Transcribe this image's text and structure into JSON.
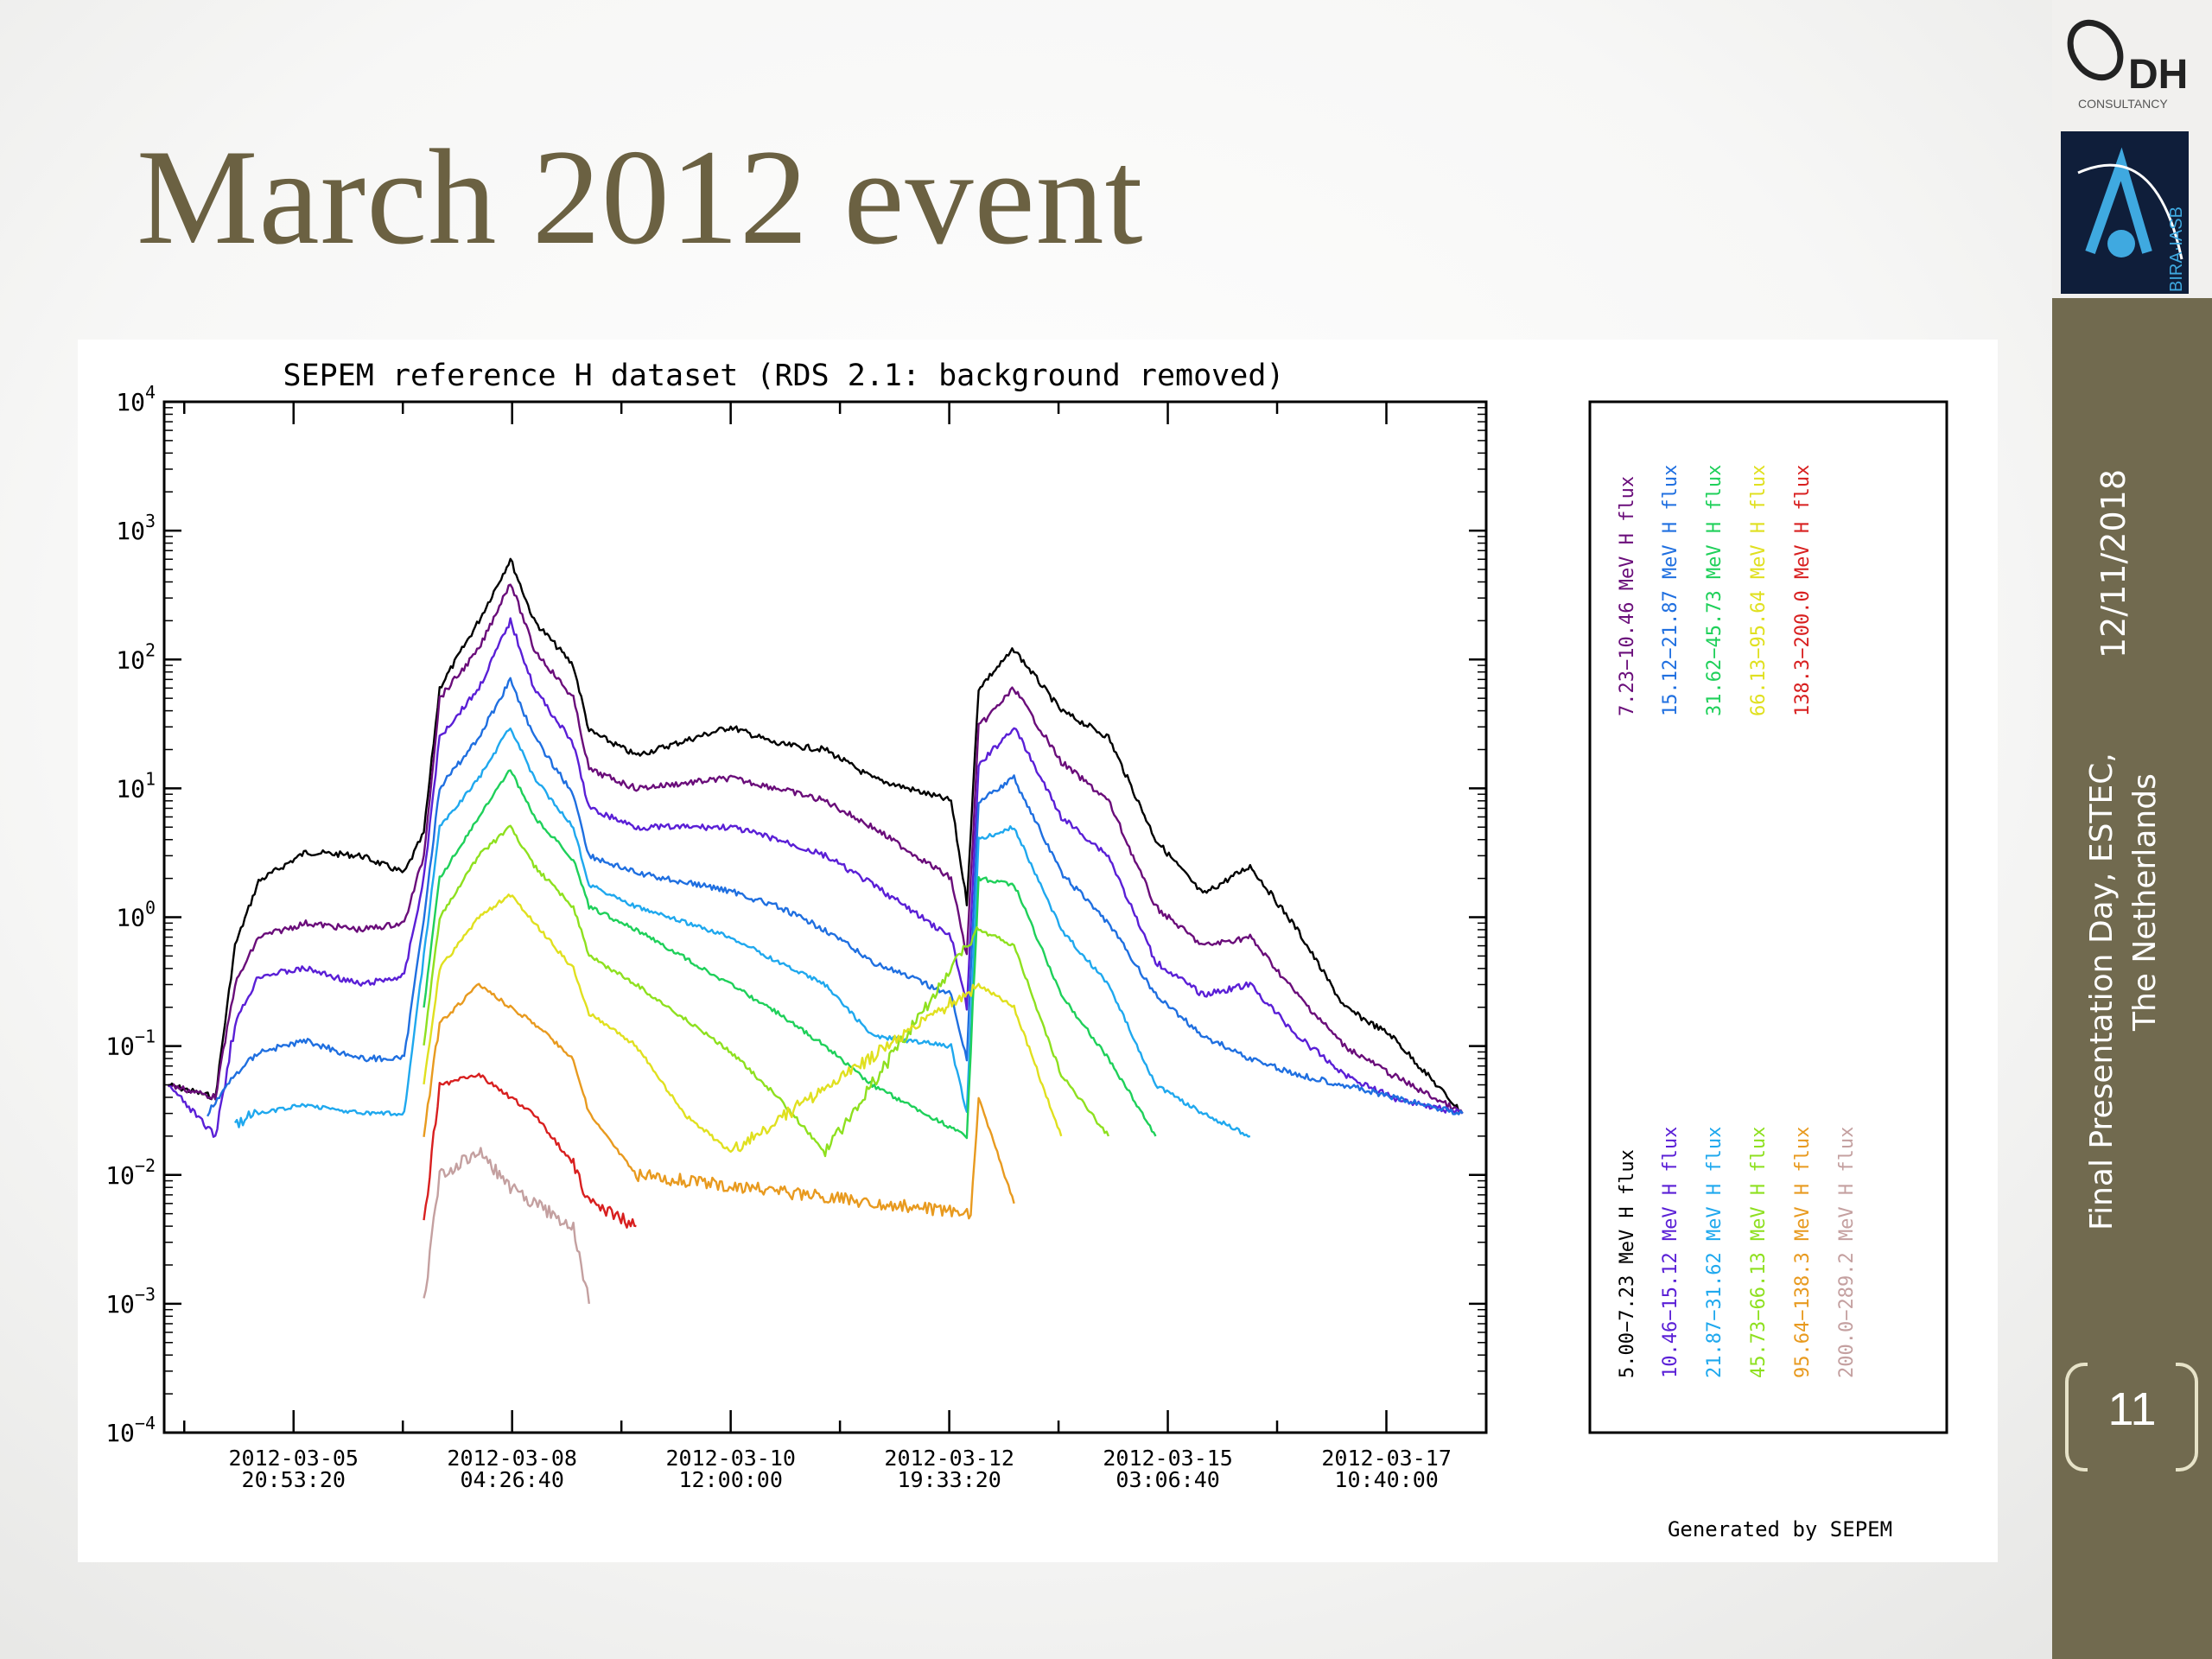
{
  "slide": {
    "title": "March 2012 event",
    "date": "12/11/2018",
    "footer_line1": "Final Presentation Day, ESTEC,",
    "footer_line2": "The Netherlands",
    "page_number": "11",
    "generated_by": "Generated by SEPEM",
    "logo1_text": "DH",
    "logo1_subtext": "CONSULTANCY",
    "logo2_text": "BIRA·IASB",
    "sidebar_color": "#716a4f",
    "title_color": "#6b6142"
  },
  "chart_data": {
    "type": "line",
    "title": "SEPEM reference H dataset (RDS 2.1: background removed)",
    "y_scale": "log",
    "ylim": [
      0.0001,
      10000
    ],
    "y_ticks": [
      {
        "value": 0.0001,
        "base": "10",
        "exp": "−4"
      },
      {
        "value": 0.001,
        "base": "10",
        "exp": "−3"
      },
      {
        "value": 0.01,
        "base": "10",
        "exp": "−2"
      },
      {
        "value": 0.1,
        "base": "10",
        "exp": "−1"
      },
      {
        "value": 1,
        "base": "10",
        "exp": "0"
      },
      {
        "value": 10,
        "base": "10",
        "exp": "1"
      },
      {
        "value": 100,
        "base": "10",
        "exp": "2"
      },
      {
        "value": 1000,
        "base": "10",
        "exp": "3"
      },
      {
        "value": 10000,
        "base": "10",
        "exp": "4"
      }
    ],
    "xlim": [
      "2012-03-04 12:00",
      "2012-03-18 12:00"
    ],
    "x_ticks": [
      {
        "date": "2012-03-05",
        "time": "20:53:20"
      },
      {
        "date": "2012-03-08",
        "time": "04:26:40"
      },
      {
        "date": "2012-03-10",
        "time": "12:00:00"
      },
      {
        "date": "2012-03-12",
        "time": "19:33:20"
      },
      {
        "date": "2012-03-15",
        "time": "03:06:40"
      },
      {
        "date": "2012-03-17",
        "time": "10:40:00"
      }
    ],
    "legend_position": "right",
    "series": [
      {
        "name": "5.00−7.23 MeV H flux",
        "color": "#000000",
        "points": [
          [
            "2012-03-04 13:00",
            0.05
          ],
          [
            "2012-03-05 01:00",
            0.04
          ],
          [
            "2012-03-05 06:00",
            0.6
          ],
          [
            "2012-03-05 12:00",
            1.9
          ],
          [
            "2012-03-06 00:00",
            3.2
          ],
          [
            "2012-03-06 14:00",
            3.0
          ],
          [
            "2012-03-07 01:00",
            2.2
          ],
          [
            "2012-03-07 06:00",
            4.5
          ],
          [
            "2012-03-07 10:00",
            60
          ],
          [
            "2012-03-07 20:00",
            200
          ],
          [
            "2012-03-08 04:00",
            600
          ],
          [
            "2012-03-08 10:00",
            200
          ],
          [
            "2012-03-08 20:00",
            90
          ],
          [
            "2012-03-09 00:00",
            28
          ],
          [
            "2012-03-09 12:00",
            18
          ],
          [
            "2012-03-10 12:00",
            30
          ],
          [
            "2012-03-11 00:00",
            22
          ],
          [
            "2012-03-11 12:00",
            20
          ],
          [
            "2012-03-12 00:00",
            12
          ],
          [
            "2012-03-12 20:00",
            8
          ],
          [
            "2012-03-13 00:00",
            1.3
          ],
          [
            "2012-03-13 03:00",
            60
          ],
          [
            "2012-03-13 12:00",
            120
          ],
          [
            "2012-03-14 00:00",
            40
          ],
          [
            "2012-03-14 12:00",
            25
          ],
          [
            "2012-03-15 00:00",
            4
          ],
          [
            "2012-03-15 12:00",
            1.5
          ],
          [
            "2012-03-16 00:00",
            2.5
          ],
          [
            "2012-03-16 12:00",
            0.8
          ],
          [
            "2012-03-17 00:00",
            0.2
          ],
          [
            "2012-03-17 12:00",
            0.12
          ],
          [
            "2012-03-18 06:00",
            0.03
          ]
        ]
      },
      {
        "name": "7.23−10.46 MeV H flux",
        "color": "#6a0d7a",
        "points": [
          [
            "2012-03-04 13:00",
            0.05
          ],
          [
            "2012-03-05 01:00",
            0.04
          ],
          [
            "2012-03-05 06:00",
            0.3
          ],
          [
            "2012-03-05 12:00",
            0.7
          ],
          [
            "2012-03-06 00:00",
            0.9
          ],
          [
            "2012-03-06 14:00",
            0.8
          ],
          [
            "2012-03-07 01:00",
            0.9
          ],
          [
            "2012-03-07 06:00",
            3
          ],
          [
            "2012-03-07 10:00",
            50
          ],
          [
            "2012-03-07 20:00",
            120
          ],
          [
            "2012-03-08 04:00",
            400
          ],
          [
            "2012-03-08 10:00",
            120
          ],
          [
            "2012-03-08 20:00",
            50
          ],
          [
            "2012-03-09 00:00",
            14
          ],
          [
            "2012-03-09 12:00",
            10
          ],
          [
            "2012-03-10 12:00",
            12
          ],
          [
            "2012-03-11 00:00",
            10
          ],
          [
            "2012-03-11 12:00",
            8
          ],
          [
            "2012-03-12 00:00",
            5
          ],
          [
            "2012-03-12 20:00",
            2
          ],
          [
            "2012-03-13 00:00",
            0.5
          ],
          [
            "2012-03-13 03:00",
            30
          ],
          [
            "2012-03-13 12:00",
            60
          ],
          [
            "2012-03-14 00:00",
            16
          ],
          [
            "2012-03-14 12:00",
            8
          ],
          [
            "2012-03-15 00:00",
            1.2
          ],
          [
            "2012-03-15 12:00",
            0.6
          ],
          [
            "2012-03-16 00:00",
            0.7
          ],
          [
            "2012-03-16 12:00",
            0.25
          ],
          [
            "2012-03-17 00:00",
            0.1
          ],
          [
            "2012-03-17 12:00",
            0.06
          ],
          [
            "2012-03-18 06:00",
            0.03
          ]
        ]
      },
      {
        "name": "10.46−15.12 MeV H flux",
        "color": "#5a1fd6",
        "points": [
          [
            "2012-03-04 13:00",
            0.05
          ],
          [
            "2012-03-05 01:00",
            0.02
          ],
          [
            "2012-03-05 06:00",
            0.15
          ],
          [
            "2012-03-05 12:00",
            0.35
          ],
          [
            "2012-03-06 00:00",
            0.4
          ],
          [
            "2012-03-06 14:00",
            0.3
          ],
          [
            "2012-03-07 01:00",
            0.35
          ],
          [
            "2012-03-07 06:00",
            2
          ],
          [
            "2012-03-07 10:00",
            25
          ],
          [
            "2012-03-07 20:00",
            60
          ],
          [
            "2012-03-08 04:00",
            200
          ],
          [
            "2012-03-08 10:00",
            60
          ],
          [
            "2012-03-08 20:00",
            22
          ],
          [
            "2012-03-09 00:00",
            7
          ],
          [
            "2012-03-09 12:00",
            5
          ],
          [
            "2012-03-10 12:00",
            5
          ],
          [
            "2012-03-11 00:00",
            4
          ],
          [
            "2012-03-11 12:00",
            3
          ],
          [
            "2012-03-12 00:00",
            1.8
          ],
          [
            "2012-03-12 20:00",
            0.7
          ],
          [
            "2012-03-13 00:00",
            0.2
          ],
          [
            "2012-03-13 03:00",
            15
          ],
          [
            "2012-03-13 12:00",
            30
          ],
          [
            "2012-03-14 00:00",
            6
          ],
          [
            "2012-03-14 12:00",
            3
          ],
          [
            "2012-03-15 00:00",
            0.45
          ],
          [
            "2012-03-15 12:00",
            0.25
          ],
          [
            "2012-03-16 00:00",
            0.3
          ],
          [
            "2012-03-16 12:00",
            0.12
          ],
          [
            "2012-03-17 00:00",
            0.06
          ],
          [
            "2012-03-17 12:00",
            0.04
          ],
          [
            "2012-03-18 06:00",
            0.03
          ]
        ]
      },
      {
        "name": "15.12−21.87 MeV H flux",
        "color": "#1f6fe0",
        "points": [
          [
            "2012-03-04 23:00",
            0.03
          ],
          [
            "2012-03-05 06:00",
            0.06
          ],
          [
            "2012-03-05 12:00",
            0.09
          ],
          [
            "2012-03-06 00:00",
            0.11
          ],
          [
            "2012-03-06 14:00",
            0.08
          ],
          [
            "2012-03-07 01:00",
            0.08
          ],
          [
            "2012-03-07 06:00",
            1
          ],
          [
            "2012-03-07 10:00",
            10
          ],
          [
            "2012-03-07 20:00",
            25
          ],
          [
            "2012-03-08 04:00",
            70
          ],
          [
            "2012-03-08 10:00",
            25
          ],
          [
            "2012-03-08 20:00",
            9
          ],
          [
            "2012-03-09 00:00",
            3
          ],
          [
            "2012-03-09 12:00",
            2.2
          ],
          [
            "2012-03-10 12:00",
            1.6
          ],
          [
            "2012-03-11 00:00",
            1.2
          ],
          [
            "2012-03-11 12:00",
            0.8
          ],
          [
            "2012-03-12 00:00",
            0.45
          ],
          [
            "2012-03-12 20:00",
            0.25
          ],
          [
            "2012-03-13 00:00",
            0.08
          ],
          [
            "2012-03-13 03:00",
            8
          ],
          [
            "2012-03-13 12:00",
            12
          ],
          [
            "2012-03-14 00:00",
            2.2
          ],
          [
            "2012-03-14 12:00",
            0.9
          ],
          [
            "2012-03-15 00:00",
            0.25
          ],
          [
            "2012-03-15 12:00",
            0.12
          ],
          [
            "2012-03-16 00:00",
            0.08
          ],
          [
            "2012-03-16 12:00",
            0.06
          ],
          [
            "2012-03-17 00:00",
            0.05
          ],
          [
            "2012-03-17 12:00",
            0.04
          ],
          [
            "2012-03-18 06:00",
            0.03
          ]
        ]
      },
      {
        "name": "21.87−31.62 MeV H flux",
        "color": "#1fa8ee",
        "points": [
          [
            "2012-03-05 06:00",
            0.025
          ],
          [
            "2012-03-05 12:00",
            0.03
          ],
          [
            "2012-03-06 00:00",
            0.035
          ],
          [
            "2012-03-06 14:00",
            0.03
          ],
          [
            "2012-03-07 01:00",
            0.03
          ],
          [
            "2012-03-07 06:00",
            0.5
          ],
          [
            "2012-03-07 10:00",
            5
          ],
          [
            "2012-03-07 20:00",
            12
          ],
          [
            "2012-03-08 04:00",
            30
          ],
          [
            "2012-03-08 10:00",
            12
          ],
          [
            "2012-03-08 20:00",
            5
          ],
          [
            "2012-03-09 00:00",
            1.8
          ],
          [
            "2012-03-09 12:00",
            1.2
          ],
          [
            "2012-03-10 12:00",
            0.7
          ],
          [
            "2012-03-11 00:00",
            0.45
          ],
          [
            "2012-03-11 12:00",
            0.3
          ],
          [
            "2012-03-12 00:00",
            0.12
          ],
          [
            "2012-03-12 20:00",
            0.1
          ],
          [
            "2012-03-13 00:00",
            0.03
          ],
          [
            "2012-03-13 03:00",
            4
          ],
          [
            "2012-03-13 12:00",
            5
          ],
          [
            "2012-03-14 00:00",
            0.8
          ],
          [
            "2012-03-14 12:00",
            0.3
          ],
          [
            "2012-03-15 00:00",
            0.05
          ],
          [
            "2012-03-15 12:00",
            0.03
          ],
          [
            "2012-03-16 00:00",
            0.02
          ]
        ]
      },
      {
        "name": "31.62−45.73 MeV H flux",
        "color": "#1fd05a",
        "points": [
          [
            "2012-03-07 06:00",
            0.2
          ],
          [
            "2012-03-07 10:00",
            2
          ],
          [
            "2012-03-07 20:00",
            6
          ],
          [
            "2012-03-08 04:00",
            14
          ],
          [
            "2012-03-08 10:00",
            6
          ],
          [
            "2012-03-08 20:00",
            2.8
          ],
          [
            "2012-03-09 00:00",
            1.2
          ],
          [
            "2012-03-09 12:00",
            0.8
          ],
          [
            "2012-03-10 12:00",
            0.3
          ],
          [
            "2012-03-11 00:00",
            0.18
          ],
          [
            "2012-03-11 12:00",
            0.1
          ],
          [
            "2012-03-12 00:00",
            0.05
          ],
          [
            "2012-03-13 00:00",
            0.02
          ],
          [
            "2012-03-13 03:00",
            2
          ],
          [
            "2012-03-13 12:00",
            1.8
          ],
          [
            "2012-03-14 00:00",
            0.25
          ],
          [
            "2012-03-14 12:00",
            0.08
          ],
          [
            "2012-03-15 00:00",
            0.02
          ]
        ]
      },
      {
        "name": "45.73−66.13 MeV H flux",
        "color": "#8ee01f",
        "points": [
          [
            "2012-03-07 06:00",
            0.1
          ],
          [
            "2012-03-07 10:00",
            1
          ],
          [
            "2012-03-07 20:00",
            3
          ],
          [
            "2012-03-08 04:00",
            5
          ],
          [
            "2012-03-08 10:00",
            2.5
          ],
          [
            "2012-03-08 20:00",
            1.2
          ],
          [
            "2012-03-09 00:00",
            0.5
          ],
          [
            "2012-03-09 12:00",
            0.3
          ],
          [
            "2012-03-10 12:00",
            0.09
          ],
          [
            "2012-03-11 00:00",
            0.04
          ],
          [
            "2012-03-11 12:00",
            0.015
          ],
          [
            "2012-03-13 03:00",
            0.8
          ],
          [
            "2012-03-13 12:00",
            0.6
          ],
          [
            "2012-03-14 00:00",
            0.06
          ],
          [
            "2012-03-14 12:00",
            0.02
          ]
        ]
      },
      {
        "name": "66.13−95.64 MeV H flux",
        "color": "#e0e01f",
        "points": [
          [
            "2012-03-07 06:00",
            0.05
          ],
          [
            "2012-03-07 10:00",
            0.4
          ],
          [
            "2012-03-07 20:00",
            1
          ],
          [
            "2012-03-08 04:00",
            1.5
          ],
          [
            "2012-03-08 10:00",
            0.9
          ],
          [
            "2012-03-08 20:00",
            0.4
          ],
          [
            "2012-03-09 00:00",
            0.18
          ],
          [
            "2012-03-09 12:00",
            0.1
          ],
          [
            "2012-03-10 00:00",
            0.03
          ],
          [
            "2012-03-10 12:00",
            0.015
          ],
          [
            "2012-03-13 03:00",
            0.3
          ],
          [
            "2012-03-13 12:00",
            0.2
          ],
          [
            "2012-03-14 00:00",
            0.02
          ]
        ]
      },
      {
        "name": "95.64−138.3 MeV H flux",
        "color": "#e89a1f",
        "points": [
          [
            "2012-03-07 06:00",
            0.02
          ],
          [
            "2012-03-07 10:00",
            0.15
          ],
          [
            "2012-03-07 20:00",
            0.3
          ],
          [
            "2012-03-08 04:00",
            0.2
          ],
          [
            "2012-03-08 10:00",
            0.15
          ],
          [
            "2012-03-08 20:00",
            0.08
          ],
          [
            "2012-03-09 00:00",
            0.03
          ],
          [
            "2012-03-09 12:00",
            0.01
          ],
          [
            "2012-03-13 01:00",
            0.005
          ],
          [
            "2012-03-13 03:00",
            0.04
          ],
          [
            "2012-03-13 12:00",
            0.006
          ]
        ]
      },
      {
        "name": "138.3−200.0 MeV H flux",
        "color": "#d81f1f",
        "points": [
          [
            "2012-03-07 06:00",
            0.004
          ],
          [
            "2012-03-07 10:00",
            0.05
          ],
          [
            "2012-03-07 20:00",
            0.06
          ],
          [
            "2012-03-08 04:00",
            0.04
          ],
          [
            "2012-03-08 10:00",
            0.03
          ],
          [
            "2012-03-08 20:00",
            0.012
          ],
          [
            "2012-03-09 00:00",
            0.006
          ],
          [
            "2012-03-09 12:00",
            0.004
          ]
        ]
      },
      {
        "name": "200.0−289.2 MeV H flux",
        "color": "#c4a0a0",
        "points": [
          [
            "2012-03-07 06:00",
            0.001
          ],
          [
            "2012-03-07 10:00",
            0.01
          ],
          [
            "2012-03-07 20:00",
            0.015
          ],
          [
            "2012-03-08 04:00",
            0.008
          ],
          [
            "2012-03-08 10:00",
            0.006
          ],
          [
            "2012-03-08 20:00",
            0.004
          ],
          [
            "2012-03-09 00:00",
            0.001
          ]
        ]
      }
    ]
  }
}
